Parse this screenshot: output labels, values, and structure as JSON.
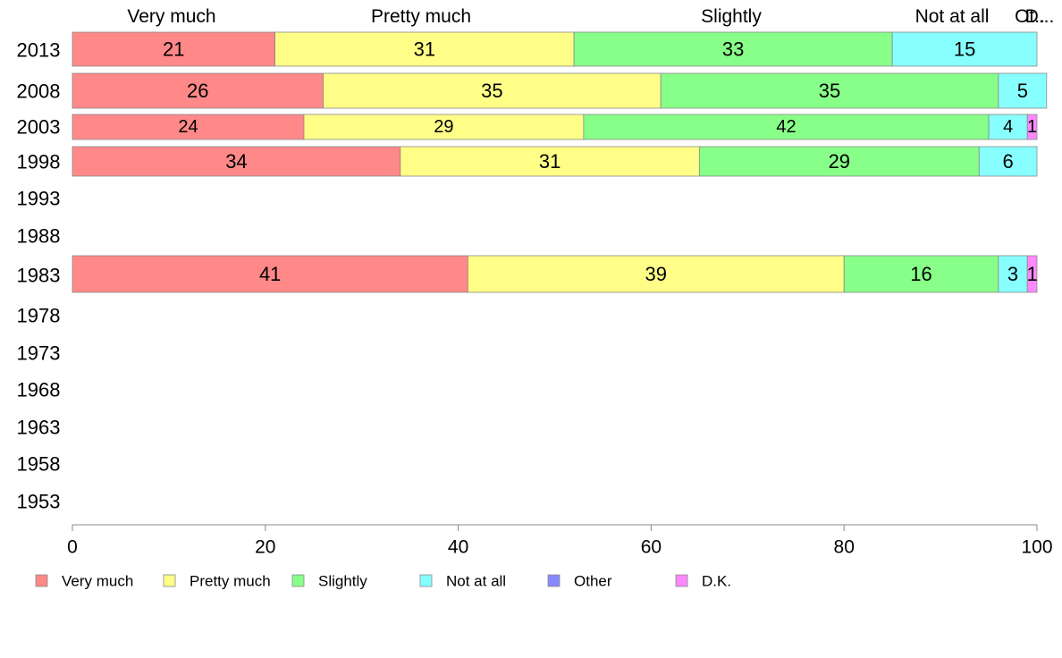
{
  "chart_data": {
    "type": "bar",
    "orientation": "horizontal",
    "stacked": true,
    "title": "",
    "xlabel": "",
    "ylabel": "",
    "xlim": [
      0,
      100
    ],
    "x_ticks": [
      "0",
      "20",
      "40",
      "60",
      "80",
      "100"
    ],
    "categories": [
      "2013",
      "2008",
      "2003",
      "1998",
      "1993",
      "1988",
      "1983",
      "1978",
      "1973",
      "1968",
      "1963",
      "1958",
      "1953"
    ],
    "top_labels": [
      "Very much",
      "Pretty much",
      "Slightly",
      "Not at all",
      "Ot..",
      "D..."
    ],
    "series": [
      {
        "name": "Very much",
        "color": "#ff8888",
        "values": [
          21,
          26,
          24,
          34,
          null,
          null,
          41,
          null,
          null,
          null,
          null,
          null,
          null
        ]
      },
      {
        "name": "Pretty much",
        "color": "#ffff88",
        "values": [
          31,
          35,
          29,
          31,
          null,
          null,
          39,
          null,
          null,
          null,
          null,
          null,
          null
        ]
      },
      {
        "name": "Slightly",
        "color": "#88ff88",
        "values": [
          33,
          35,
          42,
          29,
          null,
          null,
          16,
          null,
          null,
          null,
          null,
          null,
          null
        ]
      },
      {
        "name": "Not at all",
        "color": "#88ffff",
        "values": [
          15,
          5,
          4,
          6,
          null,
          null,
          3,
          null,
          null,
          null,
          null,
          null,
          null
        ]
      },
      {
        "name": "Other",
        "color": "#8888ff",
        "values": [
          0,
          0,
          0,
          0,
          null,
          null,
          0,
          null,
          null,
          null,
          null,
          null,
          null
        ]
      },
      {
        "name": "D.K.",
        "color": "#ff88ff",
        "values": [
          0,
          0,
          1,
          0,
          null,
          null,
          1,
          null,
          null,
          null,
          null,
          null,
          null
        ]
      }
    ],
    "legend_position": "bottom-left",
    "grid": false
  }
}
